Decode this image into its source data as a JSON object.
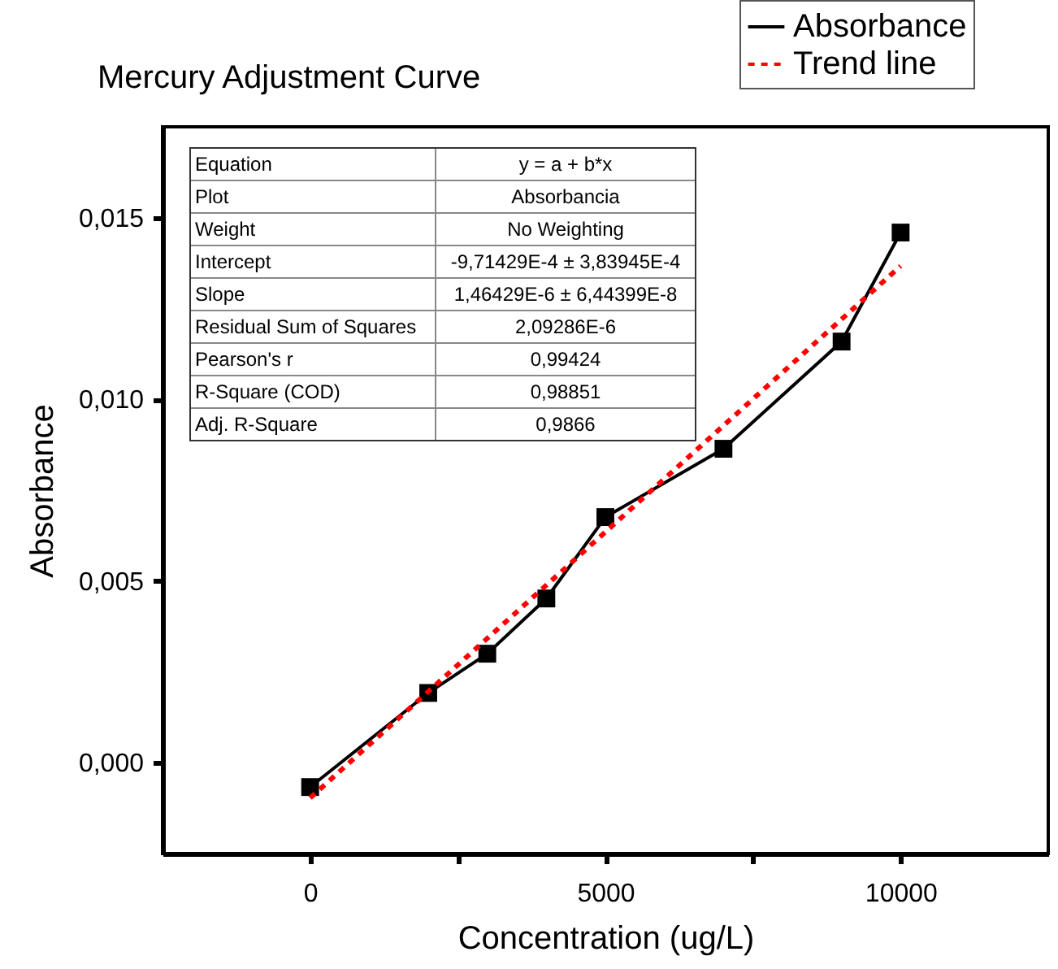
{
  "chart_data": {
    "type": "line",
    "title": "Mercury Adjustment Curve",
    "xlabel": "Concentration (ug/L)",
    "ylabel": "Absorbance",
    "xlim": [
      -2500,
      12500
    ],
    "ylim": [
      -0.0025,
      0.0175
    ],
    "xticks": [
      0,
      {
        "value": 2500,
        "label": null
      },
      5000,
      {
        "value": 7500,
        "label": null
      },
      10000
    ],
    "yticks": [
      {
        "value": 0,
        "label": "0,000"
      },
      {
        "value": 0.005,
        "label": "0,005"
      },
      {
        "value": 0.01,
        "label": "0,010"
      },
      {
        "value": 0.015,
        "label": "0,015"
      }
    ],
    "legend": "top right",
    "grid": false,
    "series": [
      {
        "name": "Absorbance",
        "type": "line",
        "color": "#000000",
        "marker": "square",
        "line_style": "solid",
        "x": [
          0,
          2000,
          3000,
          4000,
          5000,
          7000,
          9000,
          10000
        ],
        "values": [
          -0.00067,
          0.00192,
          0.003,
          0.00452,
          0.00676,
          0.00864,
          0.01159,
          0.01459
        ]
      },
      {
        "name": "Trend line",
        "type": "line",
        "color": "#ff0000",
        "marker": "none",
        "line_style": "dashed",
        "x": [
          0,
          10000
        ],
        "values": [
          -0.00097,
          0.01367
        ]
      }
    ],
    "annotations": [
      "Equation",
      "y = a + b*x",
      "Plot",
      "Absorbancia",
      "Weight",
      "No Weighting",
      "Intercept",
      "-9,71429E-4 ± 3,83945E-4",
      "Slope",
      "1,46429E-6 ± 6,44399E-8",
      "Residual Sum of Squares",
      "2,09286E-6",
      "Pearson's r",
      "0,99424",
      "R-Square (COD)",
      "0,98851",
      "Adj. R-Square",
      "0,9866"
    ]
  }
}
